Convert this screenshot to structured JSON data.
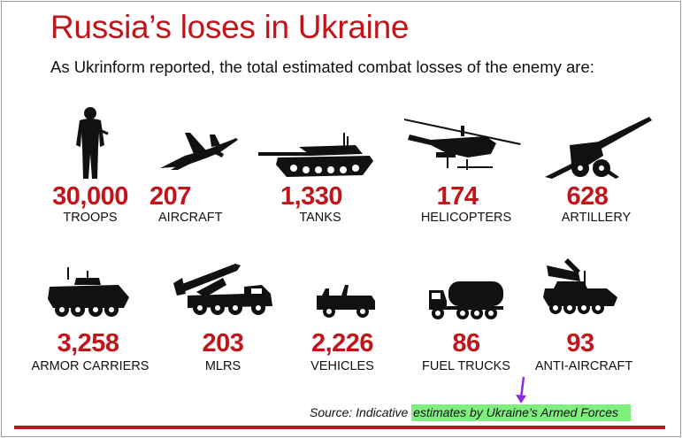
{
  "title": "Russia’s loses in Ukraine",
  "subtitle": "As Ukrinform reported, the total estimated combat losses of the enemy are:",
  "items": [
    {
      "value": "30,000",
      "label": "TROOPS",
      "icon": "soldier-icon"
    },
    {
      "value": "207",
      "label": "AIRCRAFT",
      "icon": "fighter-jet-icon"
    },
    {
      "value": "1,330",
      "label": "TANKS",
      "icon": "tank-icon"
    },
    {
      "value": "174",
      "label": "HELICOPTERS",
      "icon": "helicopter-icon"
    },
    {
      "value": "628",
      "label": "ARTILLERY",
      "icon": "artillery-icon"
    },
    {
      "value": "3,258",
      "label": "ARMOR CARRIERS",
      "icon": "armored-carrier-icon"
    },
    {
      "value": "203",
      "label": "MLRS",
      "icon": "rocket-launcher-icon"
    },
    {
      "value": "2,226",
      "label": "VEHICLES",
      "icon": "jeep-icon"
    },
    {
      "value": "86",
      "label": "FUEL TRUCKS",
      "icon": "fuel-truck-icon"
    },
    {
      "value": "93",
      "label": "ANTI-AIRCRAFT",
      "icon": "anti-aircraft-icon"
    }
  ],
  "source": {
    "prefix": "Source: Indicative ",
    "highlight": "estimates by Ukraine’s Armed Forces"
  },
  "colors": {
    "accent": "#c0151b",
    "highlight": "#7ef07e",
    "arrow": "#8a2be2"
  }
}
